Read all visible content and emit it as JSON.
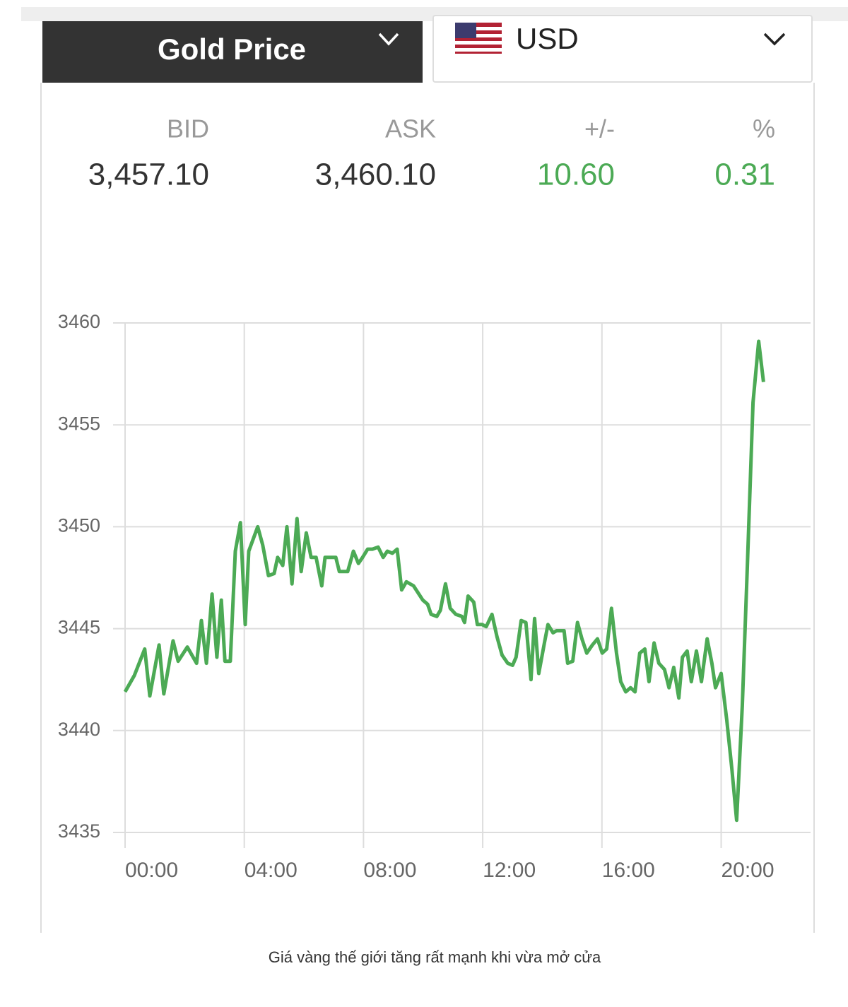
{
  "widget": {
    "title": "Gold Price",
    "currency": "USD",
    "quote": {
      "labels": [
        "BID",
        "ASK",
        "+/-",
        "%"
      ],
      "values": [
        "3,457.10",
        "3,460.10",
        "10.60",
        "0.31"
      ]
    }
  },
  "chart_data": {
    "type": "line",
    "color": "#4caa55",
    "grid": true,
    "x": [
      0,
      0.31,
      0.66,
      0.83,
      1.14,
      1.3,
      1.61,
      1.78,
      2.09,
      2.4,
      2.56,
      2.73,
      2.92,
      3.08,
      3.23,
      3.35,
      3.53,
      3.7,
      3.87,
      4.03,
      4.15,
      4.45,
      4.62,
      4.81,
      5,
      5.12,
      5.29,
      5.43,
      5.6,
      5.77,
      5.91,
      6.08,
      6.24,
      6.41,
      6.6,
      6.71,
      7.07,
      7.19,
      7.47,
      7.66,
      7.83,
      7.97,
      8.14,
      8.3,
      8.49,
      8.66,
      8.8,
      8.97,
      9.13,
      9.28,
      9.44,
      9.68,
      9.99,
      10.15,
      10.27,
      10.46,
      10.58,
      10.75,
      10.91,
      11.1,
      11.3,
      11.39,
      11.51,
      11.7,
      11.82,
      11.98,
      12.12,
      12.31,
      12.48,
      12.65,
      12.84,
      13,
      13.12,
      13.29,
      13.45,
      13.62,
      13.74,
      13.88,
      14.07,
      14.19,
      14.36,
      14.48,
      14.73,
      14.85,
      15.02,
      15.18,
      15.33,
      15.49,
      15.68,
      15.85,
      16.01,
      16.16,
      16.32,
      16.49,
      16.63,
      16.8,
      16.96,
      17.11,
      17.27,
      17.44,
      17.58,
      17.75,
      17.91,
      18.1,
      18.25,
      18.41,
      18.58,
      18.7,
      18.86,
      19,
      19.17,
      19.34,
      19.53,
      19.69,
      19.81,
      20,
      20.19,
      20.36,
      20.52,
      20.71,
      20.88,
      21.07,
      21.26,
      21.42
    ],
    "values": [
      3441.9,
      3442.7,
      3444,
      3441.7,
      3444.2,
      3441.8,
      3444.4,
      3443.4,
      3444.1,
      3443.3,
      3445.4,
      3443.3,
      3446.7,
      3443.6,
      3446.4,
      3443.4,
      3443.4,
      3448.8,
      3450.2,
      3445.2,
      3448.8,
      3450,
      3449.1,
      3447.6,
      3447.7,
      3448.5,
      3448.1,
      3450,
      3447.2,
      3450.4,
      3447.8,
      3449.7,
      3448.5,
      3448.5,
      3447.1,
      3448.5,
      3448.5,
      3447.8,
      3447.8,
      3448.8,
      3448.2,
      3448.5,
      3448.9,
      3448.9,
      3449,
      3448.5,
      3448.8,
      3448.7,
      3448.9,
      3446.9,
      3447.3,
      3447.1,
      3446.4,
      3446.2,
      3445.7,
      3445.6,
      3445.9,
      3447.2,
      3446,
      3445.7,
      3445.6,
      3445.3,
      3446.6,
      3446.3,
      3445.2,
      3445.2,
      3445.1,
      3445.7,
      3444.6,
      3443.7,
      3443.3,
      3443.2,
      3443.6,
      3445.4,
      3445.3,
      3442.5,
      3445.5,
      3442.8,
      3444.3,
      3445.2,
      3444.8,
      3444.9,
      3444.9,
      3443.3,
      3443.4,
      3445.3,
      3444.5,
      3443.8,
      3444.2,
      3444.5,
      3443.8,
      3444,
      3446,
      3443.8,
      3442.4,
      3441.9,
      3442.1,
      3441.9,
      3443.8,
      3444,
      3442.4,
      3444.3,
      3443.3,
      3443,
      3442.1,
      3443.1,
      3441.6,
      3443.6,
      3443.9,
      3442.4,
      3443.9,
      3442.4,
      3444.5,
      3443.3,
      3442.1,
      3442.8,
      3440.5,
      3438.1,
      3435.6,
      3441.2,
      3448.1,
      3456.1,
      3459.1,
      3457.1
    ],
    "xlim": [
      0,
      23
    ],
    "xticks": [
      {
        "value": 0,
        "label": "00:00"
      },
      {
        "value": 4,
        "label": "04:00"
      },
      {
        "value": 8,
        "label": "08:00"
      },
      {
        "value": 12,
        "label": "12:00"
      },
      {
        "value": 16,
        "label": "16:00"
      },
      {
        "value": 20,
        "label": "20:00"
      }
    ],
    "ylim": [
      3435,
      3460
    ],
    "yticks": [
      3435,
      3440,
      3445,
      3450,
      3455,
      3460
    ]
  },
  "caption": "Giá vàng thế giới tăng rất mạnh khi vừa mở cửa"
}
